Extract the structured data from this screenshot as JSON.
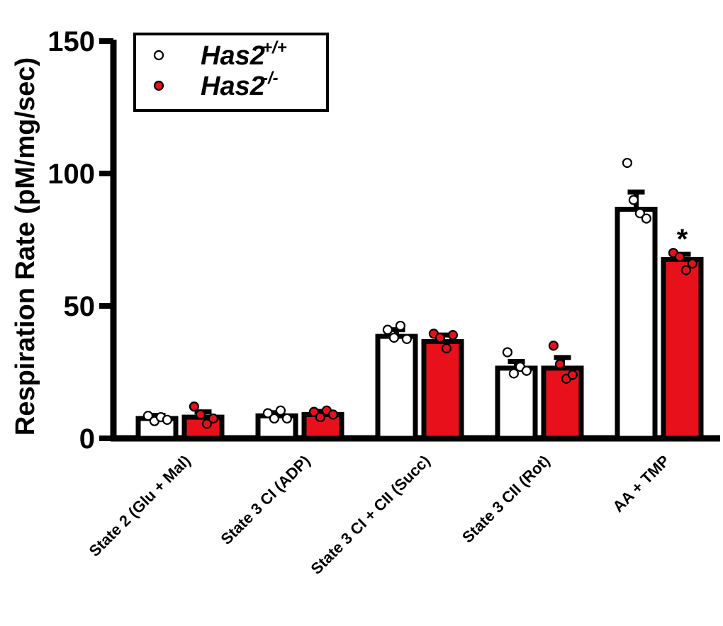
{
  "chart_data": {
    "type": "bar",
    "title": "",
    "xlabel": "",
    "ylabel": "Respiration Rate (pM/mg/sec)",
    "ylim": [
      0,
      150
    ],
    "yticks": [
      0,
      50,
      100,
      150
    ],
    "grid": false,
    "legend_position": "top-left",
    "categories": [
      "State 2 (Glu + Mal)",
      "State 3 CI (ADP)",
      "State 3 CI + CII (Succ)",
      "State 3 CII (Rot)",
      "AA + TMP"
    ],
    "series": [
      {
        "name": "Has2",
        "superscript": "+/+",
        "color": "#ffffff",
        "values": [
          7.5,
          8.5,
          38.5,
          26.5,
          86.5
        ],
        "errors": [
          1.2,
          1.2,
          2.5,
          2.5,
          6.5
        ],
        "points": [
          [
            8.5,
            6.5,
            8.0,
            7.0
          ],
          [
            9.5,
            7.5,
            10.5,
            7.5
          ],
          [
            41.0,
            38.0,
            42.5,
            37.5
          ],
          [
            32.5,
            24.5,
            27.0,
            25.5
          ],
          [
            104.0,
            90.0,
            85.0,
            83.0
          ]
        ]
      },
      {
        "name": "Has2",
        "superscript": "-/-",
        "color": "#e8101a",
        "values": [
          8.0,
          9.0,
          36.5,
          26.5,
          67.5
        ],
        "errors": [
          2.0,
          1.2,
          2.5,
          4.0,
          2.0
        ],
        "points": [
          [
            12.0,
            9.0,
            5.5,
            7.5
          ],
          [
            10.0,
            8.0,
            10.5,
            9.0
          ],
          [
            39.5,
            38.0,
            34.0,
            39.0
          ],
          [
            35.0,
            28.0,
            22.5,
            24.0
          ],
          [
            70.0,
            68.5,
            63.5,
            66.0
          ]
        ]
      }
    ],
    "annotations": [
      {
        "category": "AA + TMP",
        "series": 1,
        "text": "*"
      }
    ]
  }
}
